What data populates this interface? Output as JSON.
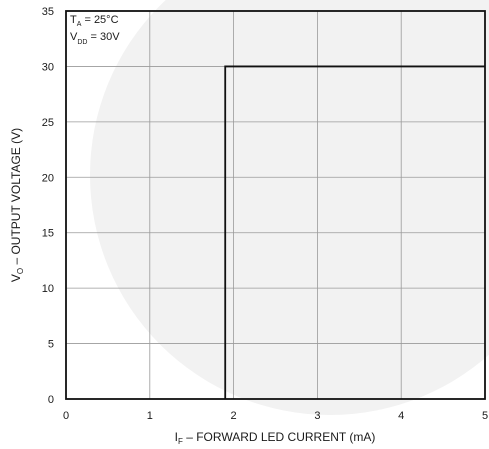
{
  "chart_data": {
    "type": "line",
    "xlabel": "I_F – FORWARD LED CURRENT (mA)",
    "xlabel_main": "I",
    "xlabel_sub": "F",
    "xlabel_rest": " – FORWARD LED CURRENT (mA)",
    "ylabel": "V_O – OUTPUT VOLTAGE (V)",
    "ylabel_main": "V",
    "ylabel_sub": "O",
    "ylabel_rest": " – OUTPUT VOLTAGE (V)",
    "xlim": [
      0,
      5
    ],
    "ylim": [
      0,
      35
    ],
    "xticks": [
      "0",
      "1",
      "2",
      "3",
      "4",
      "5"
    ],
    "yticks": [
      "0",
      "5",
      "10",
      "15",
      "20",
      "25",
      "30",
      "35"
    ],
    "grid": true,
    "annotation": {
      "line1_main": "T",
      "line1_sub": "A",
      "line1_rest": " = 25°C",
      "line2_main": "V",
      "line2_sub": "DD",
      "line2_rest": " = 30V"
    },
    "series": [
      {
        "x": [
          1.9,
          1.9,
          5.0
        ],
        "y": [
          0,
          30,
          30
        ]
      }
    ]
  }
}
